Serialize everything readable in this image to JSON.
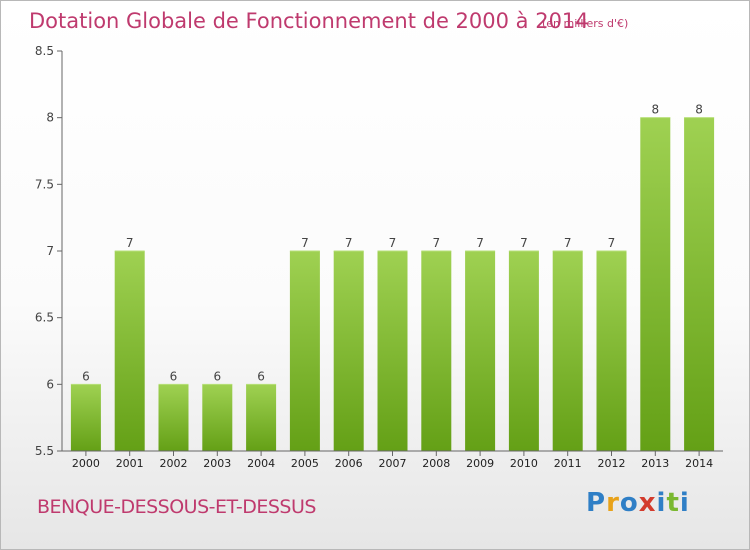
{
  "page": {
    "title": "Dotation Globale de Fonctionnement de 2000 à 2014",
    "subtitle": "(en milliers d'€)",
    "commune": "BENQUE-DESSOUS-ET-DESSUS",
    "brand": {
      "letters": [
        "P",
        "r",
        "o",
        "x",
        "i",
        "t",
        "i"
      ],
      "colors": [
        "#2f7fc6",
        "#e8a21a",
        "#2f7fc6",
        "#d33b2c",
        "#2f7fc6",
        "#7ab830",
        "#2f7fc6"
      ]
    }
  },
  "chart_data": {
    "type": "bar",
    "categories": [
      "2000",
      "2001",
      "2002",
      "2003",
      "2004",
      "2005",
      "2006",
      "2007",
      "2008",
      "2009",
      "2010",
      "2011",
      "2012",
      "2013",
      "2014"
    ],
    "values": [
      6,
      7,
      6,
      6,
      6,
      7,
      7,
      7,
      7,
      7,
      7,
      7,
      7,
      8,
      8
    ],
    "data_labels": [
      "6",
      "7",
      "6",
      "6",
      "6",
      "7",
      "7",
      "7",
      "7",
      "7",
      "7",
      "7",
      "7",
      "8",
      "8"
    ],
    "yticks": [
      5.5,
      6,
      6.5,
      7,
      7.5,
      8,
      8.5
    ],
    "ytick_labels": [
      "5.5",
      "6",
      "6.5",
      "7",
      "7.5",
      "8",
      "8.5"
    ],
    "ylim": [
      5.5,
      8.5
    ],
    "grid": false,
    "bar_color": "#8cc63f"
  }
}
